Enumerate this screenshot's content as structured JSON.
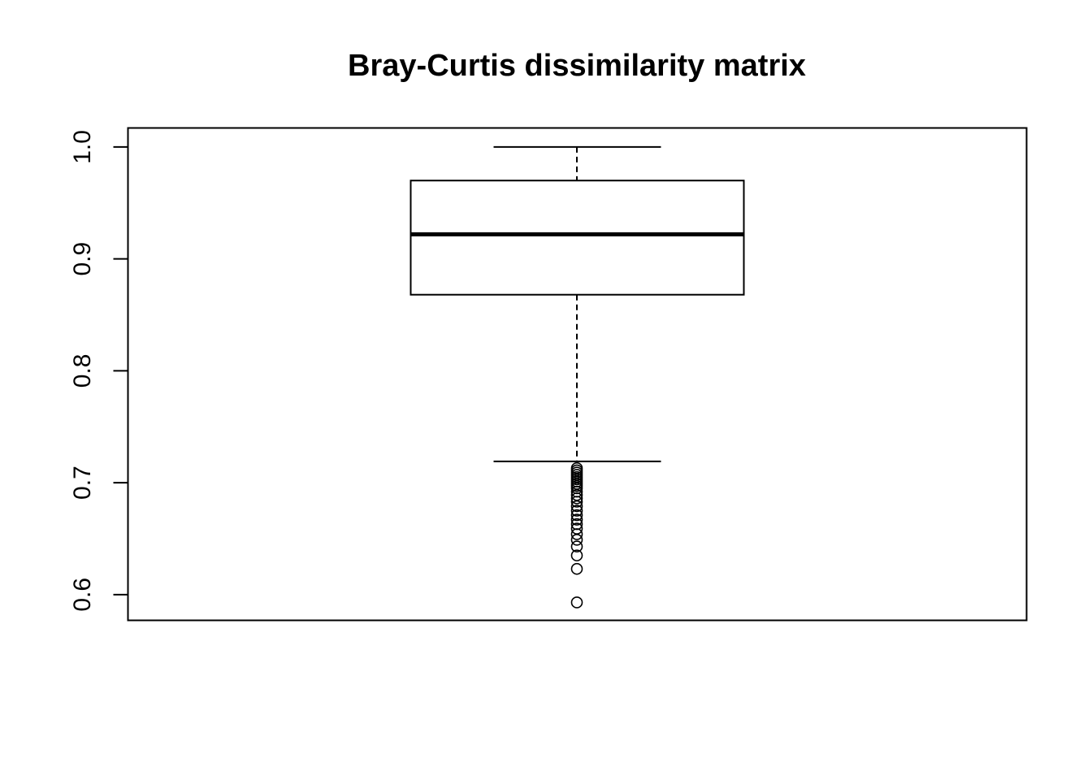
{
  "chart_data": {
    "type": "box",
    "title": "Bray-Curtis dissimilarity matrix",
    "xlabel": "",
    "ylabel": "",
    "ylim": [
      0.577,
      1.017
    ],
    "yticks": [
      {
        "value": 0.6,
        "label": "0.6"
      },
      {
        "value": 0.7,
        "label": "0.7"
      },
      {
        "value": 0.8,
        "label": "0.8"
      },
      {
        "value": 0.9,
        "label": "0.9"
      },
      {
        "value": 1.0,
        "label": "1.0"
      }
    ],
    "box": {
      "min": 0.719,
      "q1": 0.868,
      "median": 0.922,
      "q3": 0.97,
      "max": 1.0
    },
    "outliers": [
      0.713,
      0.711,
      0.709,
      0.707,
      0.705,
      0.703,
      0.701,
      0.699,
      0.697,
      0.695,
      0.692,
      0.689,
      0.686,
      0.683,
      0.679,
      0.675,
      0.671,
      0.667,
      0.663,
      0.659,
      0.654,
      0.649,
      0.643,
      0.635,
      0.623,
      0.593
    ],
    "grid": false,
    "legend": "none"
  }
}
